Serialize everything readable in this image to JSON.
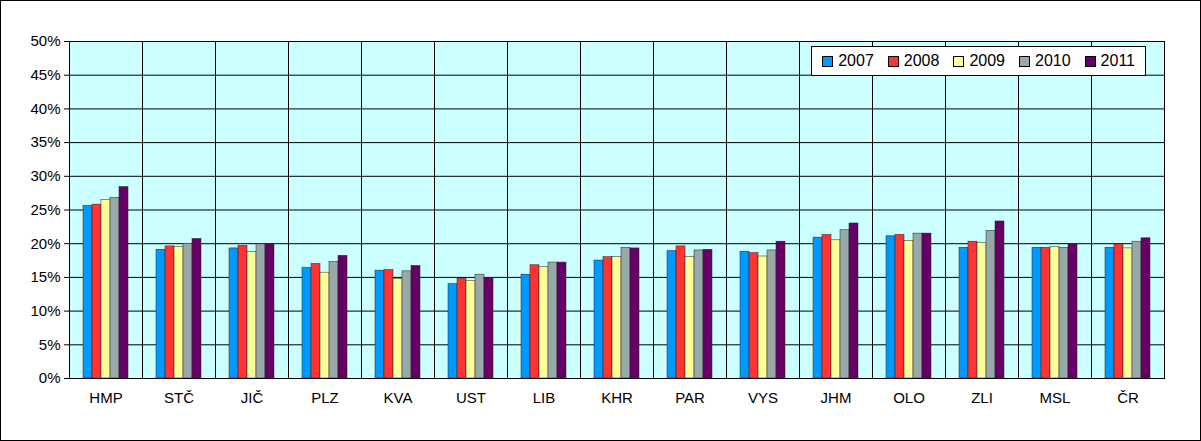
{
  "chart_data": {
    "type": "bar",
    "categories": [
      "HMP",
      "STČ",
      "JIČ",
      "PLZ",
      "KVA",
      "UST",
      "LIB",
      "KHR",
      "PAR",
      "VYS",
      "JHM",
      "OLO",
      "ZLI",
      "MSL",
      "ČR"
    ],
    "series": [
      {
        "name": "2007",
        "color": "#0099ff",
        "values": [
          25.6,
          19.1,
          19.3,
          16.4,
          16.0,
          14.0,
          15.4,
          17.5,
          18.9,
          18.8,
          20.9,
          21.1,
          19.4,
          19.4,
          19.4
        ]
      },
      {
        "name": "2008",
        "color": "#ff3333",
        "values": [
          25.8,
          19.6,
          19.7,
          17.0,
          16.1,
          14.8,
          16.8,
          18.0,
          19.6,
          18.6,
          21.3,
          21.3,
          20.3,
          19.4,
          19.9
        ]
      },
      {
        "name": "2009",
        "color": "#ffff99",
        "values": [
          26.5,
          19.5,
          18.8,
          15.7,
          14.8,
          14.5,
          16.5,
          18.0,
          18.0,
          18.1,
          20.5,
          20.4,
          20.1,
          19.5,
          19.3
        ]
      },
      {
        "name": "2010",
        "color": "#99a8a8",
        "values": [
          26.8,
          20.0,
          19.9,
          17.3,
          15.9,
          15.4,
          17.2,
          19.4,
          19.0,
          19.0,
          22.0,
          21.5,
          21.9,
          19.4,
          20.3
        ]
      },
      {
        "name": "2011",
        "color": "#660066",
        "values": [
          28.4,
          20.7,
          19.9,
          18.2,
          16.7,
          14.9,
          17.2,
          19.3,
          19.1,
          20.3,
          23.0,
          21.5,
          23.3,
          19.9,
          20.8
        ]
      }
    ],
    "ylim": [
      0,
      50
    ],
    "yticks": [
      {
        "value": 0,
        "label": "0%"
      },
      {
        "value": 5,
        "label": "5%"
      },
      {
        "value": 10,
        "label": "10%"
      },
      {
        "value": 15,
        "label": "15%"
      },
      {
        "value": 20,
        "label": "20%"
      },
      {
        "value": 25,
        "label": "25%"
      },
      {
        "value": 30,
        "label": "30%"
      },
      {
        "value": 35,
        "label": "35%"
      },
      {
        "value": 40,
        "label": "40%"
      },
      {
        "value": 45,
        "label": "45%"
      },
      {
        "value": 50,
        "label": "50%"
      }
    ],
    "grid": true,
    "legend": "top-right"
  }
}
